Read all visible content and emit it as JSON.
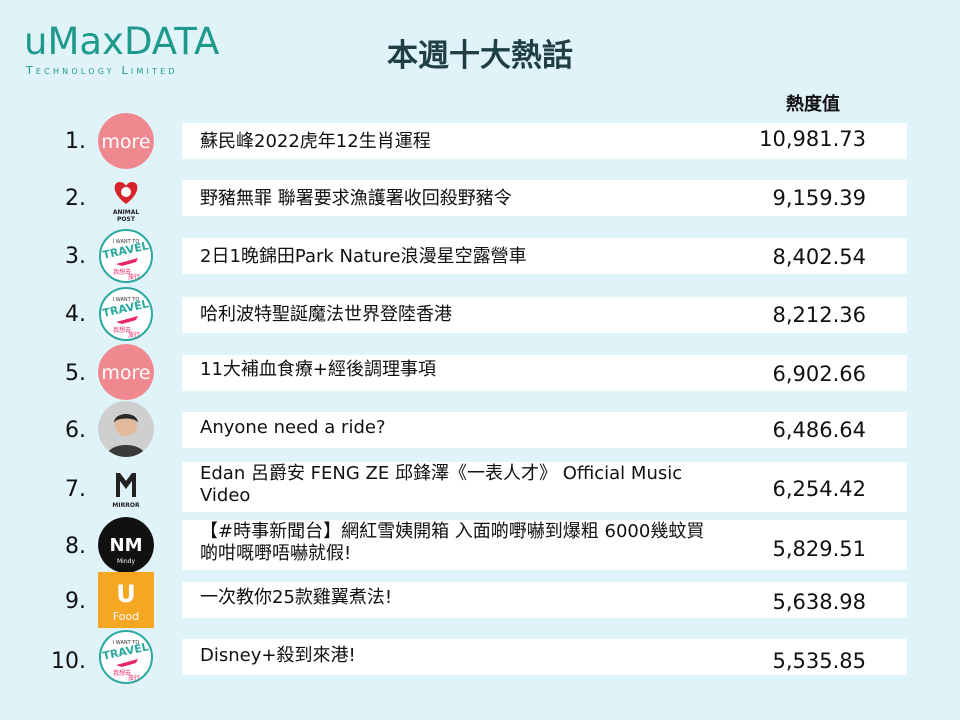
{
  "logo": {
    "main": "uMaxDATA",
    "sub": "Technology Limited"
  },
  "title": "本週十大熱話",
  "column_header": "熱度值",
  "rows": [
    {
      "rank": "1.",
      "source": "more-logo-icon",
      "title": "蘇民峰2022虎年12生肖運程",
      "score": "10,981.73"
    },
    {
      "rank": "2.",
      "source": "animal-post-logo-icon",
      "title": "野豬無罪 聯署要求漁護署收回殺野豬令",
      "score": "9,159.39"
    },
    {
      "rank": "3.",
      "source": "travel-logo-icon",
      "title": "2日1晚錦田Park Nature浪漫星空露營車",
      "score": "8,402.54"
    },
    {
      "rank": "4.",
      "source": "travel-logo-icon",
      "title": "哈利波特聖誕魔法世界登陸香港",
      "score": "8,212.36"
    },
    {
      "rank": "5.",
      "source": "more-logo-icon",
      "title": "11大補血食療+經後調理事項",
      "score": "6,902.66"
    },
    {
      "rank": "6.",
      "source": "person-avatar-icon",
      "title": "Anyone need a ride?",
      "score": "6,486.64"
    },
    {
      "rank": "7.",
      "source": "mirror-logo-icon",
      "title": "Edan 呂爵安 FENG ZE 邱鋒澤《一表人才》 Official Music Video",
      "score": "6,254.42"
    },
    {
      "rank": "8.",
      "source": "nm-logo-icon",
      "title": "【#時事新聞台】網紅雪姨開箱 入面啲嘢嚇到爆粗 6000幾蚊買啲咁嘅嘢唔嚇就假!",
      "score": "5,829.51"
    },
    {
      "rank": "9.",
      "source": "u-food-logo-icon",
      "title": "一次教你25款雞翼煮法!",
      "score": "5,638.98"
    },
    {
      "rank": "10.",
      "source": "travel-logo-icon",
      "title": "Disney+殺到來港!",
      "score": "5,535.85"
    }
  ],
  "icon_text": {
    "more": "more",
    "animal_post": "ANIMAL POST",
    "travel_top": "I WANT TO",
    "travel_main": "TRAVEL",
    "travel_cn": "我想去旅行",
    "mirror": "MIRROR",
    "nm": "NM",
    "nm_sub": "Mindy",
    "u_food_u": "U",
    "u_food_label": "Food"
  },
  "colors": {
    "background": "#dff3f8",
    "logo": "#1e9a8c",
    "title": "#1f3f45",
    "more_pink": "#f0888f",
    "u_food_orange": "#f5a623",
    "travel_pink": "#e8256a",
    "travel_teal": "#2aa9a0"
  }
}
